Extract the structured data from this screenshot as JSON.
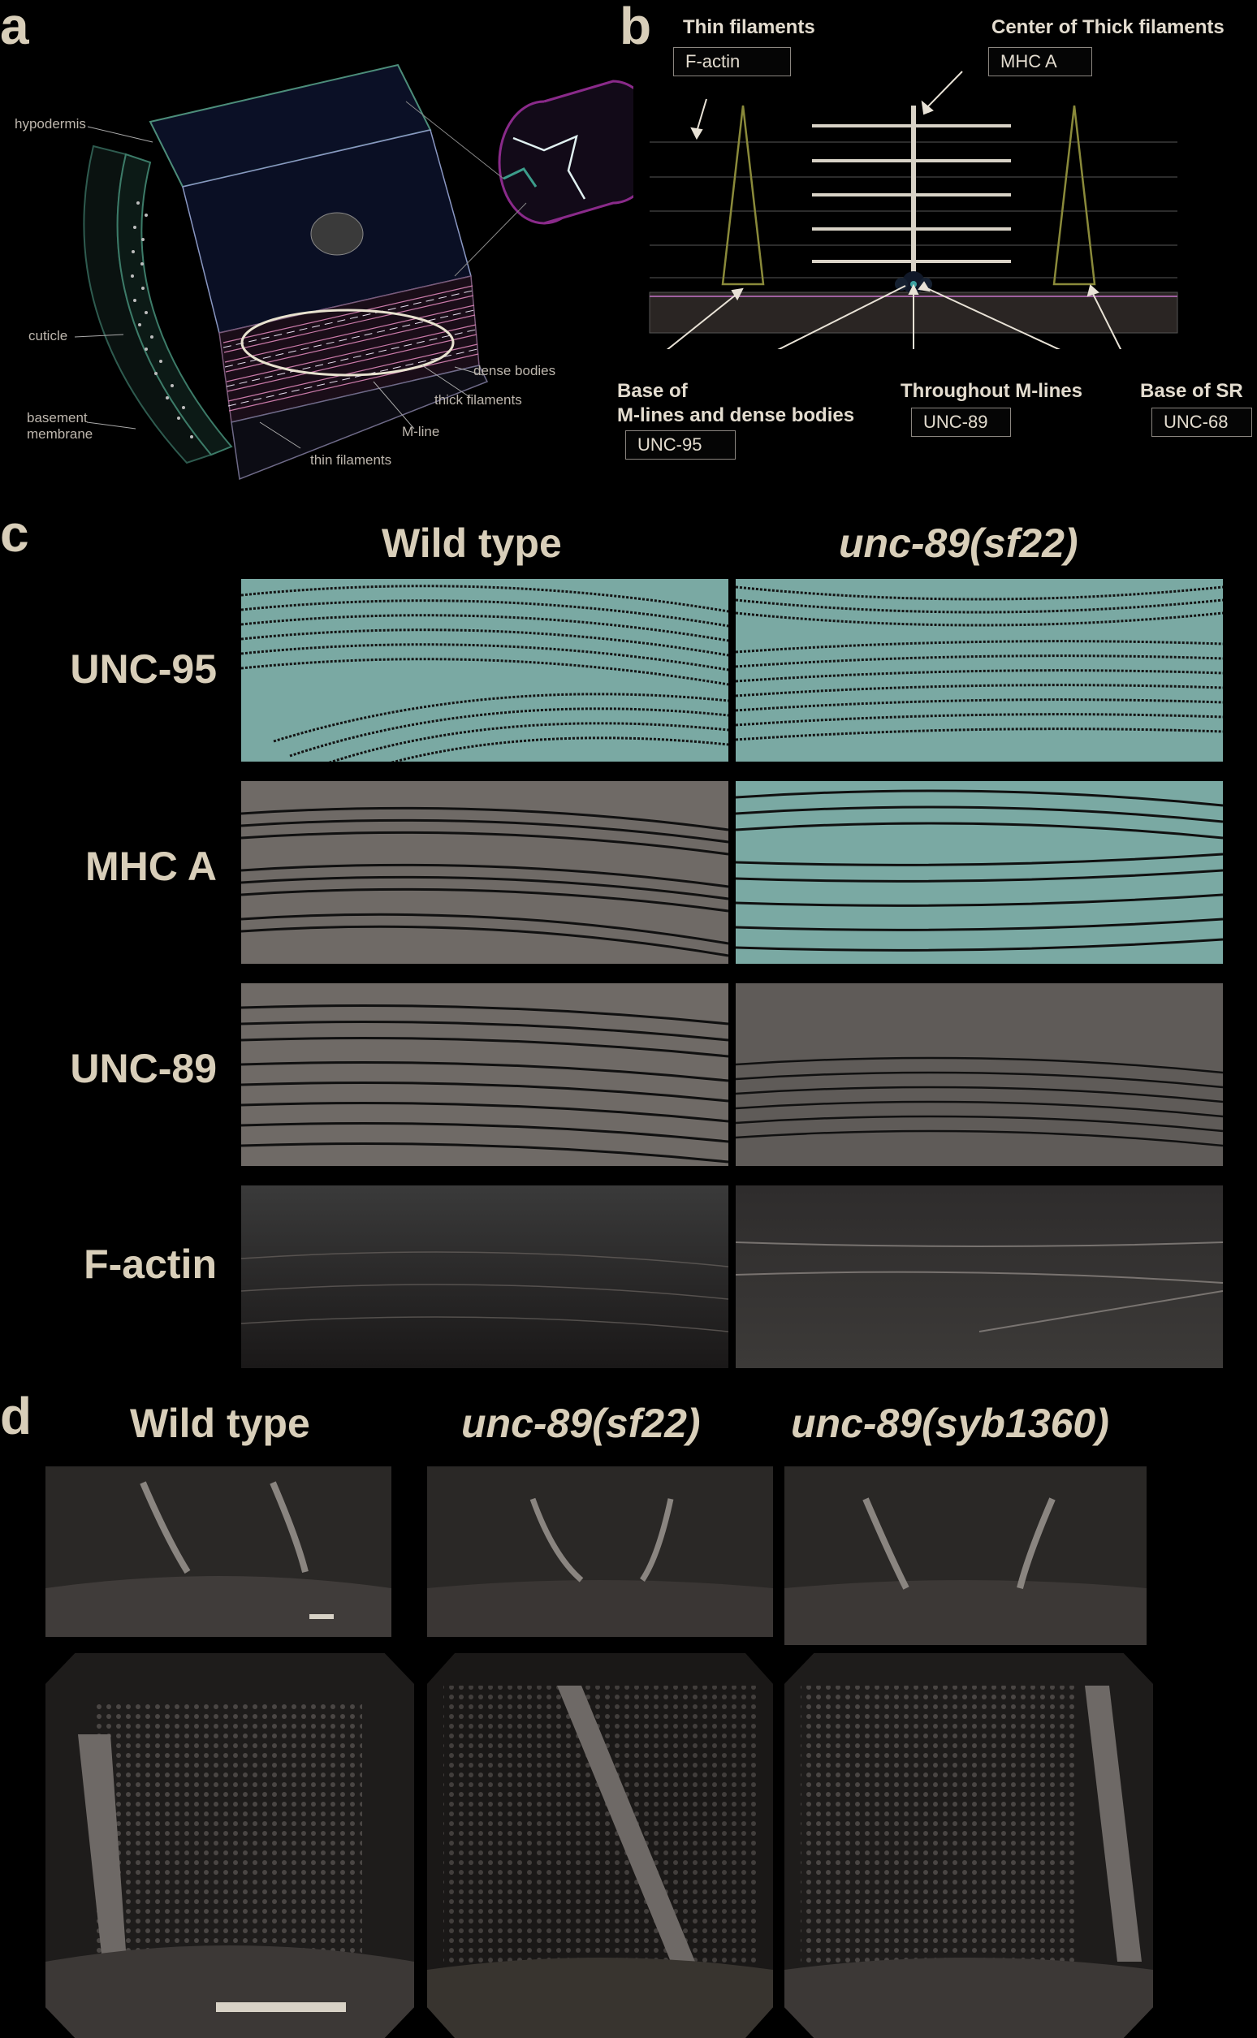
{
  "panels": {
    "a": {
      "letter": "a",
      "labels": {
        "hypodermis": "hypodermis",
        "cuticle": "cuticle",
        "basement_membrane_1": "basement",
        "basement_membrane_2": "membrane",
        "dense_bodies": "dense bodies",
        "thick_filaments": "thick filaments",
        "m_line": "M-line",
        "thin_filaments": "thin filaments"
      }
    },
    "b": {
      "letter": "b",
      "thin_filaments_title": "Thin filaments",
      "thin_filaments_box": "F-actin",
      "thick_center_title": "Center of Thick filaments",
      "thick_center_box": "MHC A",
      "base_m_lines_1": "Base of",
      "base_m_lines_2": "M-lines and dense bodies",
      "base_m_lines_box": "UNC-95",
      "throughout_title": "Throughout M-lines",
      "throughout_box": "UNC-89",
      "base_sr_title": "Base of SR",
      "base_sr_box": "UNC-68"
    },
    "c": {
      "letter": "c",
      "columns": [
        "Wild type",
        "unc-89(sf22)"
      ],
      "rows": [
        "UNC-95",
        "MHC A",
        "UNC-89",
        "F-actin"
      ]
    },
    "d": {
      "letter": "d",
      "columns": [
        "Wild type",
        "unc-89(sf22)",
        "unc-89(syb1360)"
      ]
    }
  },
  "colors": {
    "background": "#000000",
    "text": "#d8ceb9",
    "cyan_background": "#7aa9a3",
    "gray_background": "#6f6a66"
  }
}
